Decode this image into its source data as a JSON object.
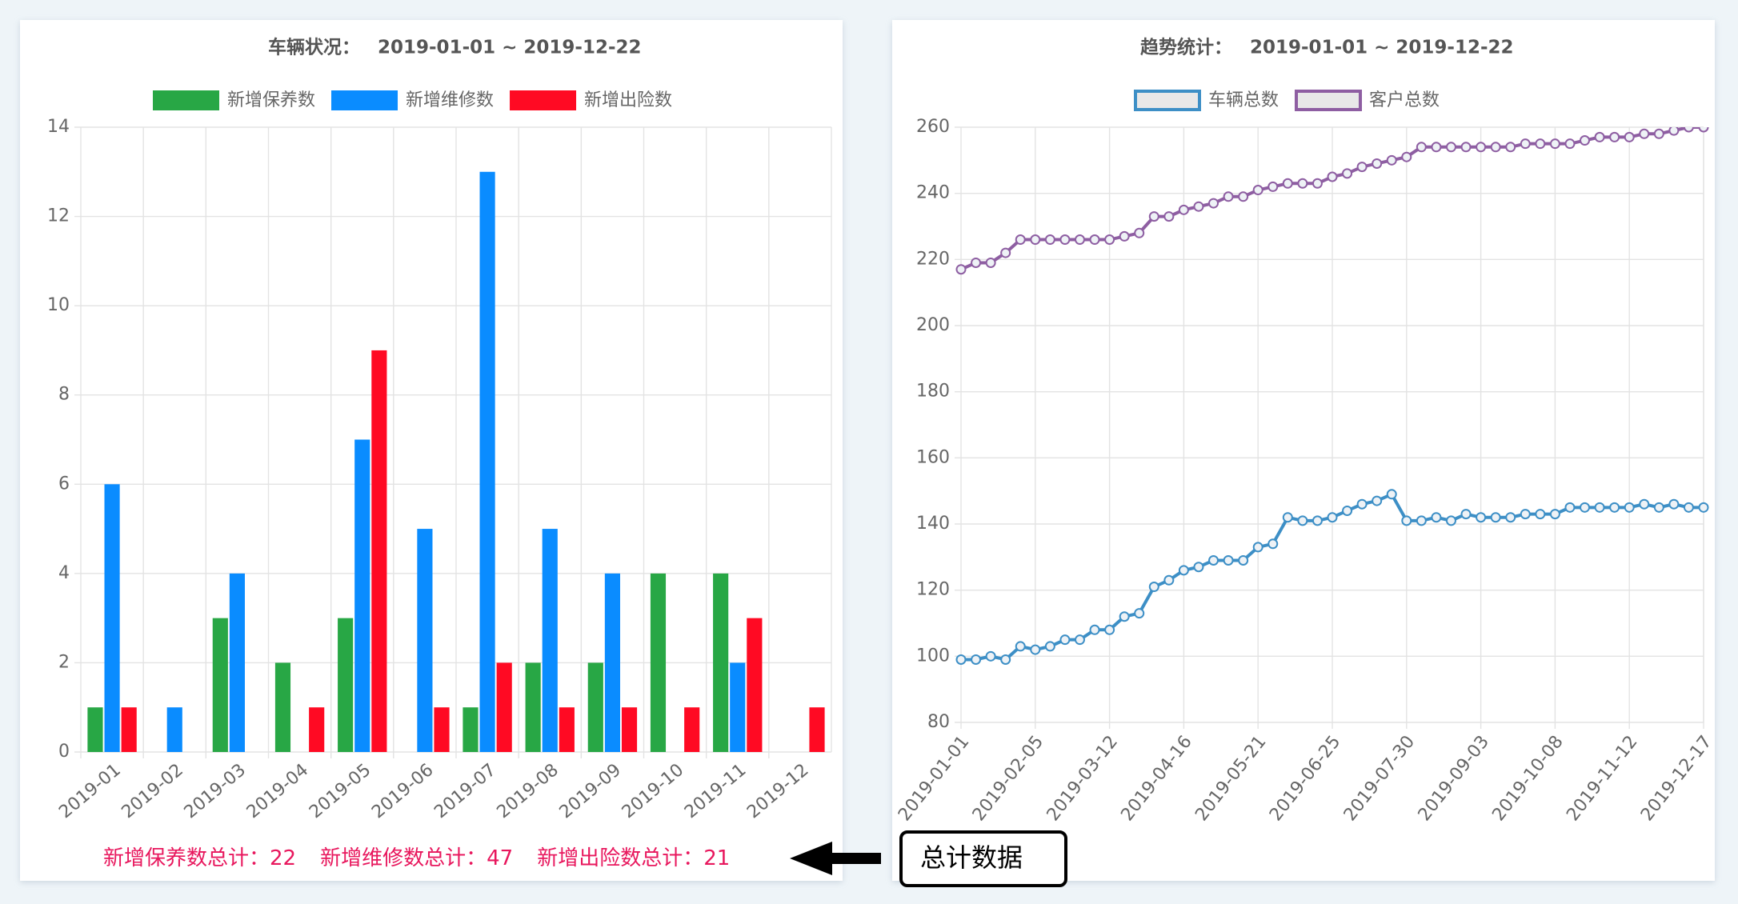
{
  "chart_data": [
    {
      "type": "bar",
      "title": "车辆状况：",
      "subtitle": "2019-01-01 ~ 2019-12-22",
      "categories": [
        "2019-01",
        "2019-02",
        "2019-03",
        "2019-04",
        "2019-05",
        "2019-06",
        "2019-07",
        "2019-08",
        "2019-09",
        "2019-10",
        "2019-11",
        "2019-12"
      ],
      "series": [
        {
          "name": "新增保养数",
          "color": "#28a745",
          "values": [
            1,
            0,
            3,
            2,
            3,
            0,
            1,
            2,
            2,
            4,
            4,
            0
          ]
        },
        {
          "name": "新增维修数",
          "color": "#0a8cff",
          "values": [
            6,
            1,
            4,
            0,
            7,
            5,
            13,
            5,
            4,
            0,
            2,
            0
          ]
        },
        {
          "name": "新增出险数",
          "color": "#ff0a23",
          "values": [
            1,
            0,
            0,
            1,
            9,
            1,
            2,
            1,
            1,
            1,
            3,
            1
          ]
        }
      ],
      "ylim": [
        0,
        14
      ],
      "yticks": [
        0,
        2,
        4,
        6,
        8,
        10,
        12,
        14
      ],
      "grid": true,
      "legend": "top"
    },
    {
      "type": "line",
      "title": "趋势统计：",
      "subtitle": "2019-01-01 ~ 2019-12-22",
      "categories": [
        "2019-01-01",
        null,
        null,
        null,
        null,
        "2019-02-05",
        null,
        null,
        null,
        null,
        "2019-03-12",
        null,
        null,
        null,
        null,
        "2019-04-16",
        null,
        null,
        null,
        null,
        "2019-05-21",
        null,
        null,
        null,
        null,
        "2019-06-25",
        null,
        null,
        null,
        null,
        "2019-07-30",
        null,
        null,
        null,
        null,
        "2019-09-03",
        null,
        null,
        null,
        null,
        "2019-10-08",
        null,
        null,
        null,
        null,
        "2019-11-12",
        null,
        null,
        null,
        null,
        "2019-12-17"
      ],
      "series": [
        {
          "name": "车辆总数",
          "color": "#3d8fc6",
          "values": [
            99,
            99,
            100,
            99,
            103,
            102,
            103,
            105,
            105,
            108,
            108,
            112,
            113,
            121,
            123,
            126,
            127,
            129,
            129,
            129,
            133,
            134,
            142,
            141,
            141,
            142,
            144,
            146,
            147,
            149,
            141,
            141,
            142,
            141,
            143,
            142,
            142,
            142,
            143,
            143,
            143,
            145,
            145,
            145,
            145,
            145,
            146,
            145,
            146,
            145,
            145
          ]
        },
        {
          "name": "客户总数",
          "color": "#8e5ea2",
          "values": [
            217,
            219,
            219,
            222,
            226,
            226,
            226,
            226,
            226,
            226,
            226,
            227,
            228,
            233,
            233,
            235,
            236,
            237,
            239,
            239,
            241,
            242,
            243,
            243,
            243,
            245,
            246,
            248,
            249,
            250,
            251,
            254,
            254,
            254,
            254,
            254,
            254,
            254,
            255,
            255,
            255,
            255,
            256,
            257,
            257,
            257,
            258,
            258,
            259,
            260,
            260
          ]
        }
      ],
      "ylim": [
        80,
        260
      ],
      "yticks": [
        80,
        100,
        120,
        140,
        160,
        180,
        200,
        220,
        240,
        260
      ],
      "grid": true,
      "legend": "top"
    }
  ],
  "totals": [
    {
      "label": "新增保养数总计：",
      "value": 22
    },
    {
      "label": "新增维修数总计：",
      "value": 47
    },
    {
      "label": "新增出险数总计：",
      "value": 21
    }
  ],
  "annotation": "总计数据"
}
